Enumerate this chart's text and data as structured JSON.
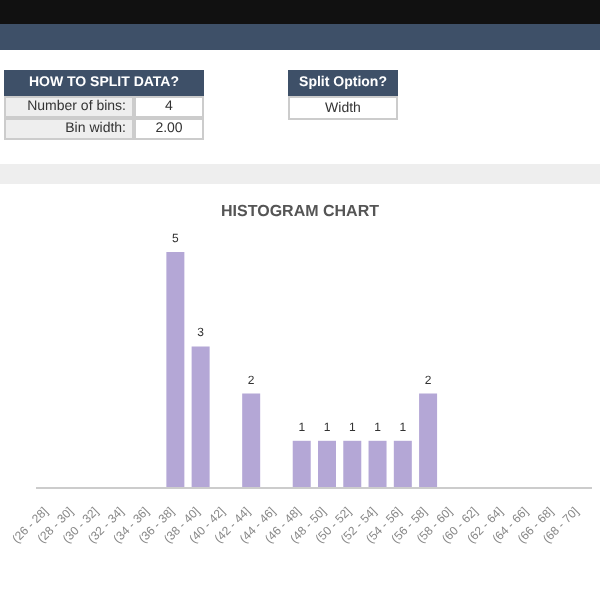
{
  "chart_data": {
    "type": "bar",
    "title": "HISTOGRAM CHART",
    "categories": [
      "(26 - 28]",
      "(28 - 30]",
      "(30 - 32]",
      "(32 - 34]",
      "(34 - 36]",
      "(36 - 38]",
      "(38 - 40]",
      "(40 - 42]",
      "(42 - 44]",
      "(44 - 46]",
      "(46 - 48]",
      "(48 - 50]",
      "(50 - 52]",
      "(52 - 54]",
      "(54 - 56]",
      "(56 - 58]",
      "(58 - 60]",
      "(60 - 62]",
      "(62 - 64]",
      "(64 - 66]",
      "(66 - 68]",
      "(68 - 70]"
    ],
    "values": [
      0,
      0,
      0,
      0,
      0,
      5,
      3,
      0,
      2,
      0,
      1,
      1,
      1,
      1,
      1,
      2,
      0,
      0,
      0,
      0,
      0,
      0
    ],
    "value_labels": [
      null,
      null,
      null,
      null,
      null,
      "5",
      "3",
      null,
      "2",
      null,
      "1",
      "1",
      "1",
      "1",
      "1",
      "2",
      null,
      null,
      null,
      null,
      null,
      null
    ],
    "color": "#b4a7d6",
    "grid": false,
    "legend": false,
    "annotations": [
      "HOW TO SPLIT DATA?",
      "Number of bins:",
      "4",
      "Bin width:",
      "2.00",
      "Split Option?",
      "Width"
    ]
  }
}
